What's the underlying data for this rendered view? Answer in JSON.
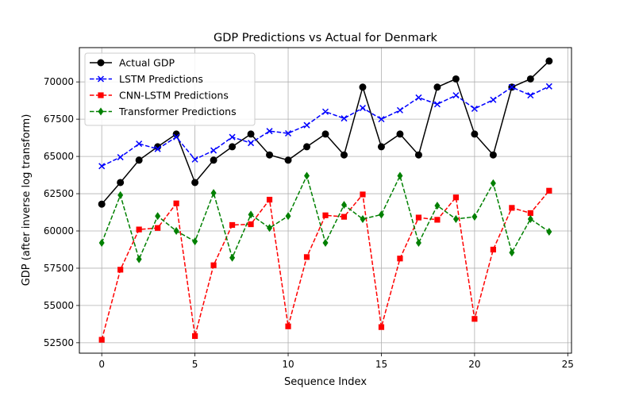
{
  "chart_data": {
    "type": "line",
    "title": "GDP Predictions vs Actual for Denmark",
    "xlabel": "Sequence Index",
    "ylabel": "GDP (after inverse log transform)",
    "xlim": [
      -1.2,
      25.2
    ],
    "ylim": [
      51800,
      72300
    ],
    "xticks": [
      0,
      5,
      10,
      15,
      20,
      25
    ],
    "yticks": [
      52500,
      55000,
      57500,
      60000,
      62500,
      65000,
      67500,
      70000
    ],
    "grid": true,
    "legend_position": "top-left",
    "x": [
      0,
      1,
      2,
      3,
      4,
      5,
      6,
      7,
      8,
      9,
      10,
      11,
      12,
      13,
      14,
      15,
      16,
      17,
      18,
      19,
      20,
      21,
      22,
      23,
      24
    ],
    "series": [
      {
        "name": "Actual GDP",
        "color": "#000000",
        "marker": "circle",
        "dash": "solid",
        "values": [
          61800,
          63250,
          64750,
          65650,
          66500,
          63250,
          64750,
          65650,
          66500,
          65100,
          64750,
          65650,
          66500,
          65100,
          69650,
          65650,
          66500,
          65100,
          69650,
          70200,
          66500,
          65100,
          69650,
          70200,
          71400
        ]
      },
      {
        "name": "LSTM Predictions",
        "color": "#0000ff",
        "marker": "x",
        "dash": "dashed",
        "values": [
          64350,
          64950,
          65850,
          65500,
          66300,
          64800,
          65400,
          66300,
          65900,
          66700,
          66550,
          67100,
          68000,
          67550,
          68250,
          67500,
          68100,
          68950,
          68500,
          69100,
          68200,
          68800,
          69650,
          69100,
          69700
        ]
      },
      {
        "name": "CNN-LSTM Predictions",
        "color": "#ff0000",
        "marker": "square",
        "dash": "dashed",
        "values": [
          52700,
          57400,
          60100,
          60200,
          61850,
          52950,
          57700,
          60400,
          60450,
          62100,
          53600,
          58250,
          61050,
          60950,
          62450,
          53550,
          58150,
          60900,
          60750,
          62250,
          54100,
          58750,
          61550,
          61200,
          62700
        ]
      },
      {
        "name": "Transformer Predictions",
        "color": "#008000",
        "marker": "diamond",
        "dash": "dashed",
        "values": [
          59200,
          62400,
          58100,
          61000,
          60000,
          59300,
          62550,
          58200,
          61100,
          60200,
          61000,
          63700,
          59200,
          61750,
          60800,
          61100,
          63700,
          59200,
          61700,
          60800,
          60950,
          63200,
          58550,
          60800,
          59950
        ]
      }
    ]
  }
}
